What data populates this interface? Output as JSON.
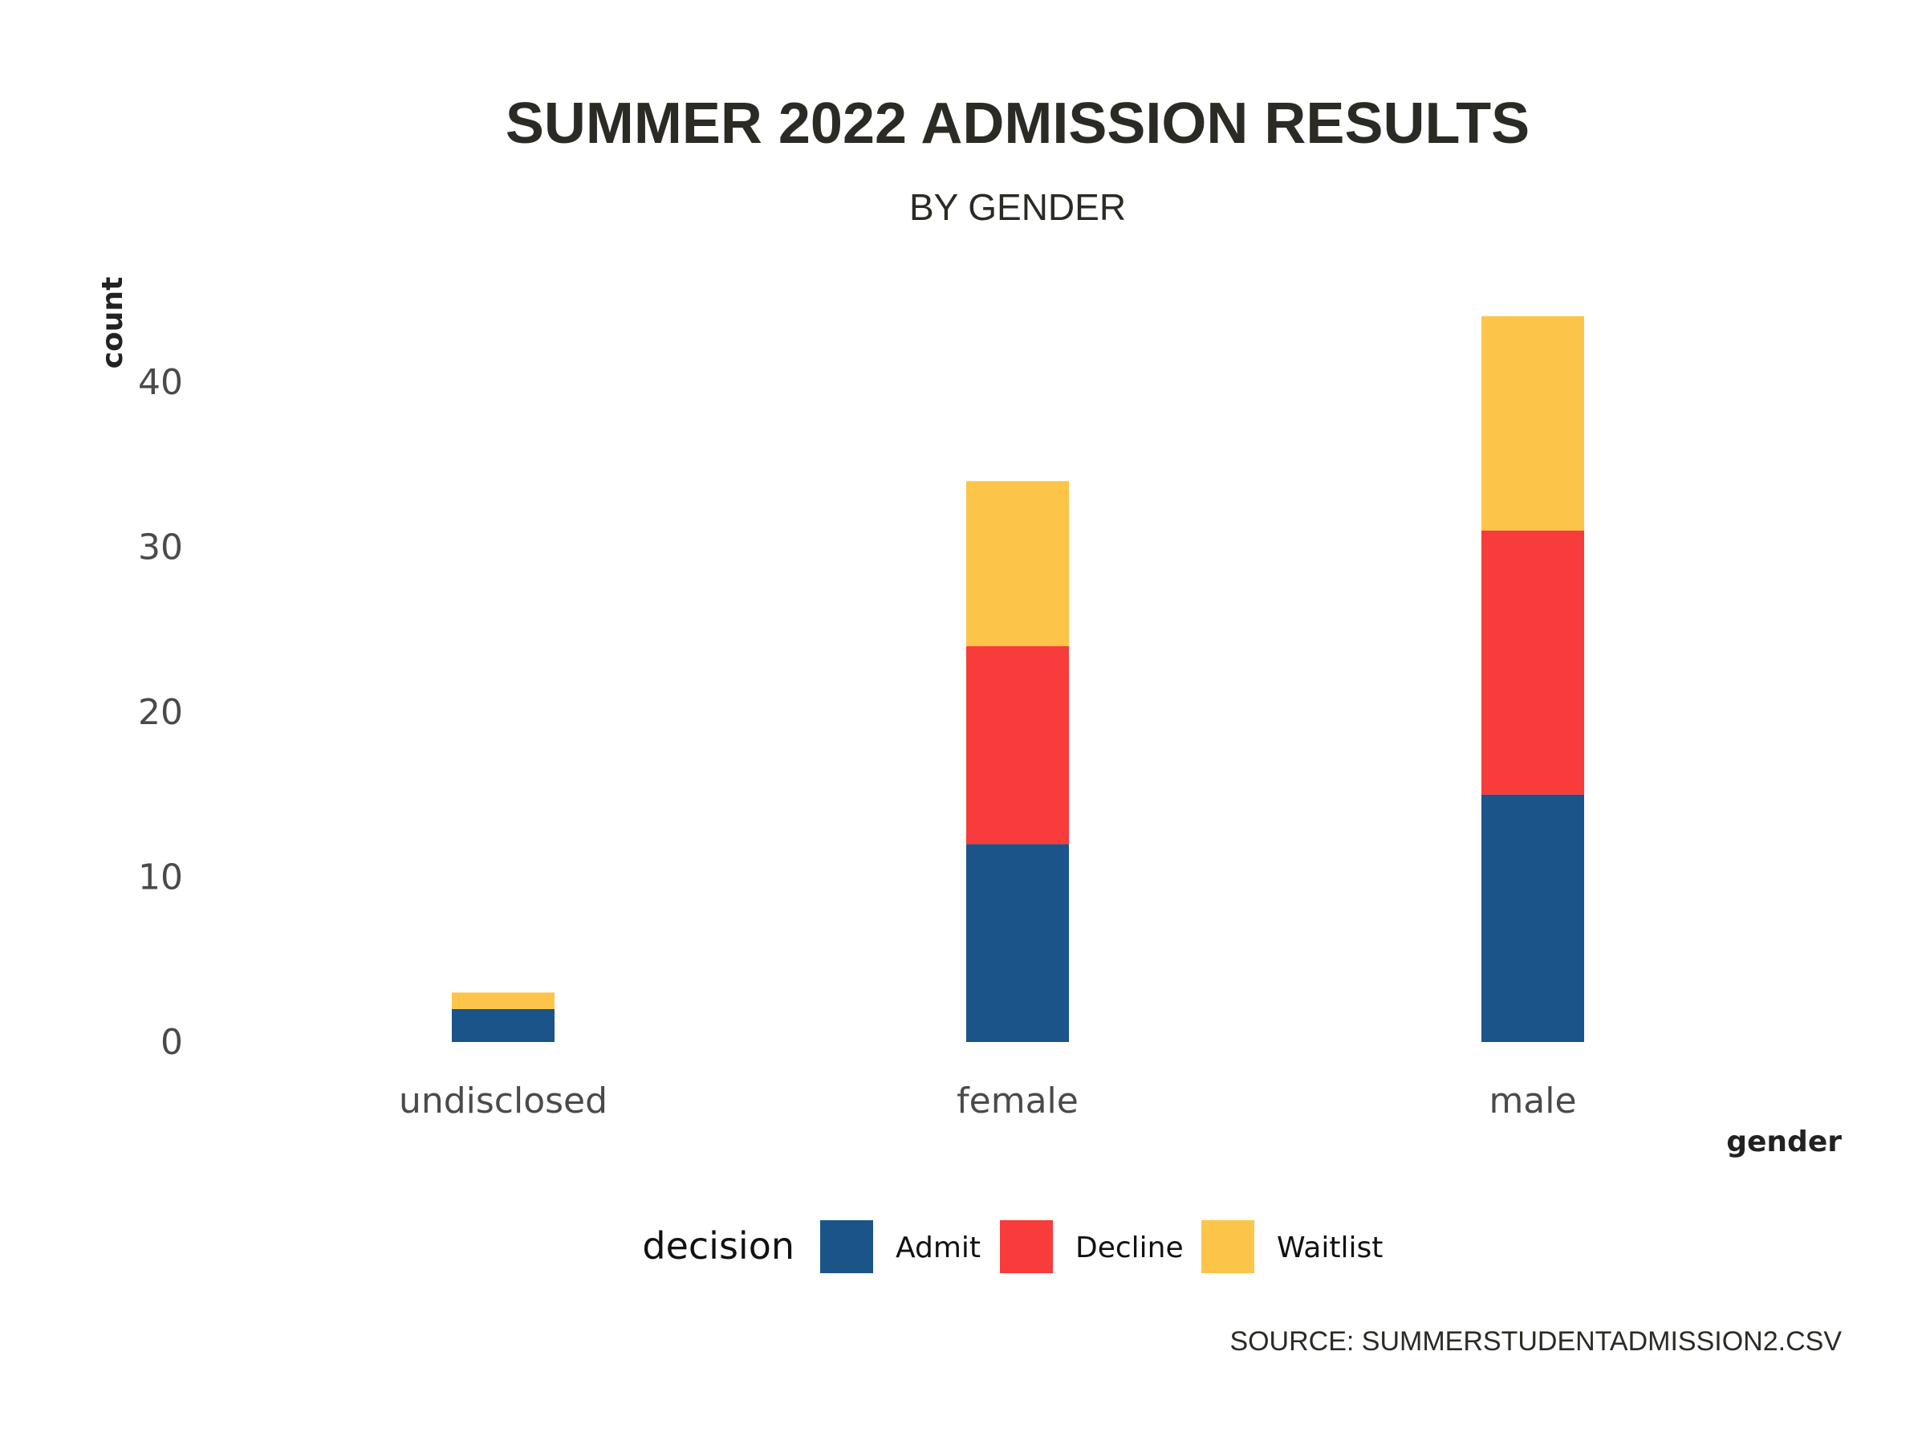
{
  "chart_data": {
    "type": "bar",
    "stacked": true,
    "title": "SUMMER 2022 ADMISSION RESULTS",
    "subtitle": "BY GENDER",
    "xlabel": "gender",
    "ylabel": "count",
    "caption": "SOURCE: SUMMERSTUDENTADMISSION2.CSV",
    "categories": [
      "undisclosed",
      "female",
      "male"
    ],
    "yticks": [
      0,
      10,
      20,
      30,
      40
    ],
    "ylim": [
      0,
      46
    ],
    "grid": false,
    "legend": {
      "title": "decision",
      "position": "bottom"
    },
    "series": [
      {
        "name": "Admit",
        "color": "#1a5488",
        "values": [
          2,
          12,
          15
        ]
      },
      {
        "name": "Decline",
        "color": "#f83b3b",
        "values": [
          0,
          12,
          16
        ]
      },
      {
        "name": "Waitlist",
        "color": "#fcc549",
        "values": [
          1,
          10,
          13
        ]
      }
    ]
  }
}
